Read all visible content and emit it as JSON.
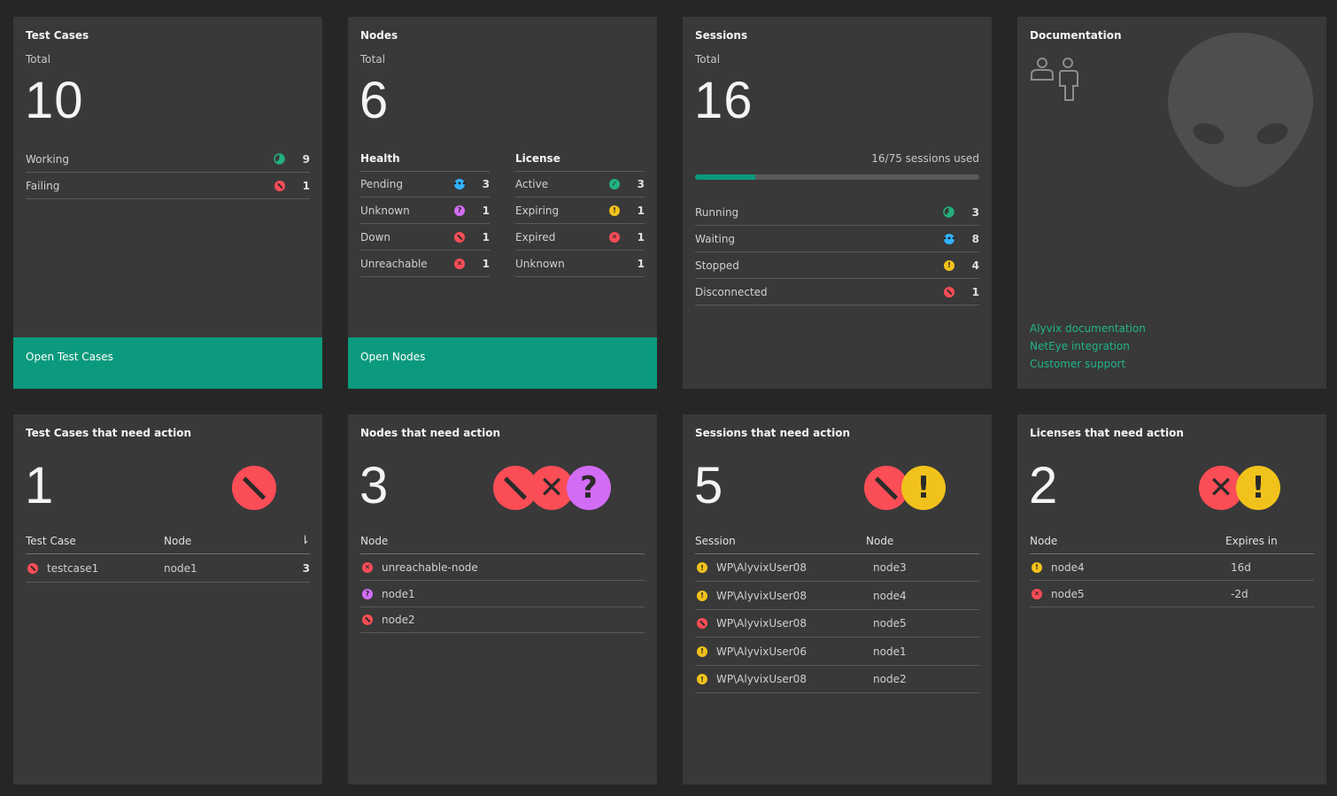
{
  "test_cases": {
    "title": "Test Cases",
    "total_label": "Total",
    "total": "10",
    "rows": [
      {
        "label": "Working",
        "count": "9",
        "icon": "partial-circle-icon"
      },
      {
        "label": "Failing",
        "count": "1",
        "icon": "blocked-icon"
      }
    ],
    "open_label": "Open Test Cases"
  },
  "nodes": {
    "title": "Nodes",
    "total_label": "Total",
    "total": "6",
    "health_label": "Health",
    "license_label": "License",
    "health": [
      {
        "label": "Pending",
        "count": "3"
      },
      {
        "label": "Unknown",
        "count": "1"
      },
      {
        "label": "Down",
        "count": "1"
      },
      {
        "label": "Unreachable",
        "count": "1"
      }
    ],
    "license": [
      {
        "label": "Active",
        "count": "3"
      },
      {
        "label": "Expiring",
        "count": "1"
      },
      {
        "label": "Expired",
        "count": "1"
      },
      {
        "label": "Unknown",
        "count": "1"
      }
    ],
    "open_label": "Open Nodes"
  },
  "sessions": {
    "title": "Sessions",
    "total_label": "Total",
    "total": "16",
    "usage_text": "16/75 sessions used",
    "usage_fraction": 0.213,
    "rows": [
      {
        "label": "Running",
        "count": "3"
      },
      {
        "label": "Waiting",
        "count": "8"
      },
      {
        "label": "Stopped",
        "count": "4"
      },
      {
        "label": "Disconnected",
        "count": "1"
      }
    ]
  },
  "documentation": {
    "title": "Documentation",
    "links": [
      "Alyvix documentation",
      "NetEye integration",
      "Customer support"
    ]
  },
  "tc_action": {
    "title": "Test Cases that need action",
    "count": "1",
    "headers": {
      "test_case": "Test Case",
      "node": "Node"
    },
    "rows": [
      {
        "test_case": "testcase1",
        "node": "node1",
        "count": "3"
      }
    ]
  },
  "nodes_action": {
    "title": "Nodes that need action",
    "count": "3",
    "headers": {
      "node": "Node"
    },
    "rows": [
      {
        "node": "unreachable-node"
      },
      {
        "node": "node1"
      },
      {
        "node": "node2"
      }
    ]
  },
  "sessions_action": {
    "title": "Sessions that need action",
    "count": "5",
    "headers": {
      "session": "Session",
      "node": "Node"
    },
    "rows": [
      {
        "session": "WP\\AlyvixUser08",
        "node": "node3"
      },
      {
        "session": "WP\\AlyvixUser08",
        "node": "node4"
      },
      {
        "session": "WP\\AlyvixUser08",
        "node": "node5"
      },
      {
        "session": "WP\\AlyvixUser06",
        "node": "node1"
      },
      {
        "session": "WP\\AlyvixUser08",
        "node": "node2"
      }
    ]
  },
  "licenses_action": {
    "title": "Licenses that need action",
    "count": "2",
    "headers": {
      "node": "Node",
      "expires": "Expires in"
    },
    "rows": [
      {
        "node": "node4",
        "expires": "16d"
      },
      {
        "node": "node5",
        "expires": "-2d"
      }
    ]
  },
  "colors": {
    "accent": "#0b9a7d",
    "error": "#fa4d56",
    "warning": "#f1c21b",
    "info": "#33b1ff",
    "unknown": "#d36cf5",
    "ok": "#22b07d"
  }
}
